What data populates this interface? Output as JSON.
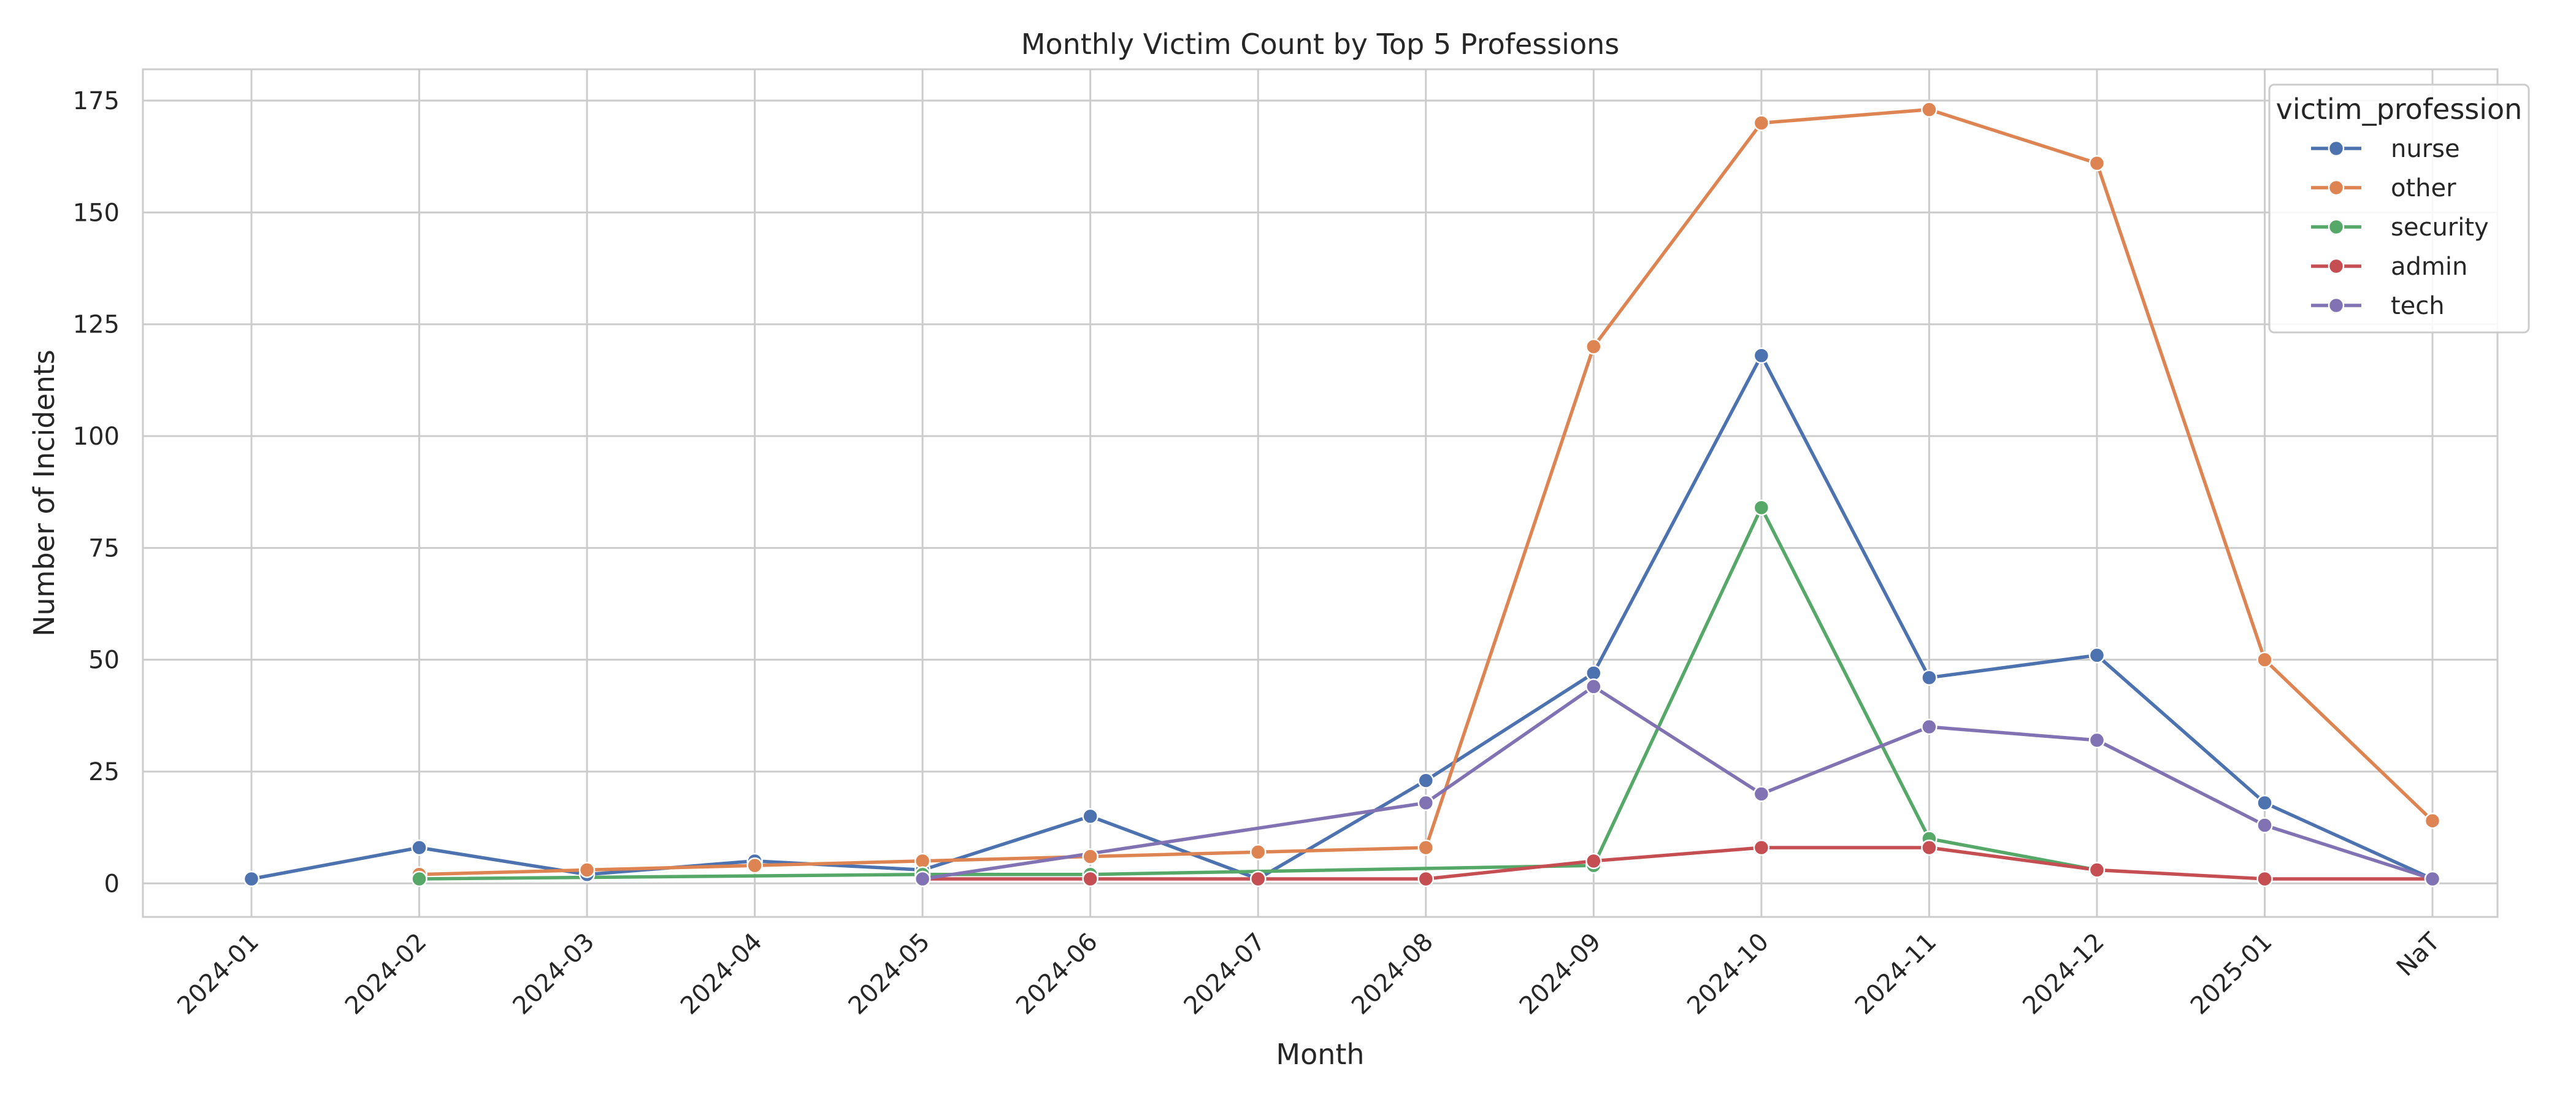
{
  "chart_data": {
    "type": "line",
    "title": "Monthly Victim Count by Top 5 Professions",
    "xlabel": "Month",
    "ylabel": "Number of Incidents",
    "categories": [
      "2024-01",
      "2024-02",
      "2024-03",
      "2024-04",
      "2024-05",
      "2024-06",
      "2024-07",
      "2024-08",
      "2024-09",
      "2024-10",
      "2024-11",
      "2024-12",
      "2025-01",
      "NaT"
    ],
    "ylim": [
      -7.5,
      182
    ],
    "yticks": [
      0,
      25,
      50,
      75,
      100,
      125,
      150,
      175
    ],
    "grid": true,
    "legend": {
      "title": "victim_profession",
      "placement": "top-right"
    },
    "series": [
      {
        "name": "nurse",
        "color": "#4c72b0",
        "values": [
          1,
          8,
          2,
          5,
          3,
          15,
          1,
          23,
          47,
          118,
          46,
          51,
          18,
          1
        ]
      },
      {
        "name": "other",
        "color": "#dd8452",
        "values": [
          null,
          2,
          3,
          4,
          5,
          6,
          7,
          8,
          120,
          170,
          173,
          161,
          50,
          14
        ]
      },
      {
        "name": "security",
        "color": "#55a868",
        "values": [
          null,
          1,
          null,
          null,
          2,
          2,
          null,
          null,
          4,
          84,
          10,
          3,
          null,
          null
        ]
      },
      {
        "name": "admin",
        "color": "#c44e52",
        "values": [
          null,
          null,
          null,
          null,
          1,
          1,
          1,
          1,
          5,
          8,
          8,
          3,
          1,
          1
        ]
      },
      {
        "name": "tech",
        "color": "#8172b3",
        "values": [
          null,
          null,
          null,
          null,
          1,
          null,
          null,
          18,
          44,
          20,
          35,
          32,
          13,
          1
        ]
      }
    ]
  }
}
